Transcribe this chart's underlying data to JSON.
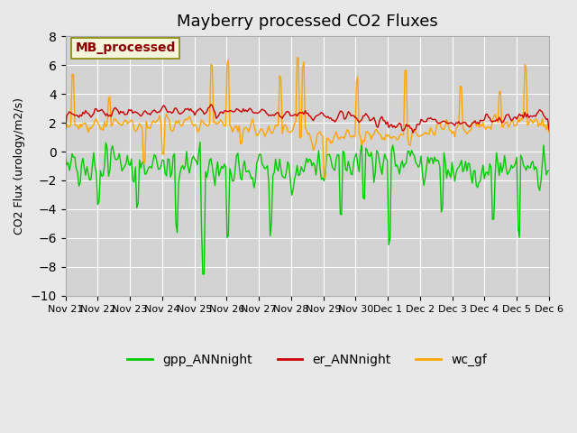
{
  "title": "Mayberry processed CO2 Fluxes",
  "ylabel": "CO2 Flux (urology/m2/s)",
  "ylim": [
    -10,
    8
  ],
  "yticks": [
    -10,
    -8,
    -6,
    -4,
    -2,
    0,
    2,
    4,
    6,
    8
  ],
  "background_color": "#e8e8e8",
  "plot_bg_color": "#d3d3d3",
  "legend_label": "MB_processed",
  "legend_label_color": "#8B0000",
  "legend_box_color": "#f5f5dc",
  "series": {
    "gpp_ANNnight": {
      "color": "#00cc00",
      "label": "gpp_ANNnight"
    },
    "er_ANNnight": {
      "color": "#cc0000",
      "label": "er_ANNnight"
    },
    "wc_gf": {
      "color": "#ffa500",
      "label": "wc_gf"
    }
  },
  "x_tick_labels": [
    "Nov 21",
    "Nov 22",
    "Nov 23",
    "Nov 24",
    "Nov 25",
    "Nov 26",
    "Nov 27",
    "Nov 28",
    "Nov 29",
    "Nov 30",
    "Dec 1",
    "Dec 2",
    "Dec 3",
    "Dec 4",
    "Dec 5",
    "Dec 6"
  ],
  "line_width": 1.0
}
